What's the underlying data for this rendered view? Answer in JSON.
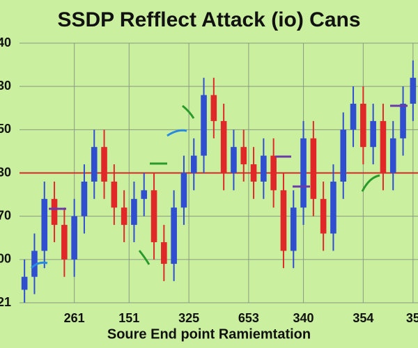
{
  "chart_data": {
    "type": "candlestick",
    "title": "SSDP Refflect Attack (io) Cans",
    "x_label": "Soure End point Ramiemtation",
    "xlim": [
      0,
      40
    ],
    "xticks": [
      {
        "value": 5.5,
        "label": "261"
      },
      {
        "value": 11,
        "label": "151"
      },
      {
        "value": 17,
        "label": "325"
      },
      {
        "value": 23,
        "label": "653"
      },
      {
        "value": 28.5,
        "label": "340"
      },
      {
        "value": 34.5,
        "label": "354"
      },
      {
        "value": 39.5,
        "label": "35"
      }
    ],
    "ylim": [
      0,
      6
    ],
    "yticks": [
      {
        "value": 0,
        "label": "21"
      },
      {
        "value": 1,
        "label": "00"
      },
      {
        "value": 2,
        "label": "70"
      },
      {
        "value": 3,
        "label": "30"
      },
      {
        "value": 4,
        "label": "50"
      },
      {
        "value": 5,
        "label": "30"
      },
      {
        "value": 6,
        "label": "40"
      }
    ],
    "grid": true,
    "reference_line": {
      "value": 3,
      "color": "#d42a2a"
    },
    "up_color": "#2f4fd0",
    "down_color": "#e02828",
    "x": [
      0,
      1,
      2,
      3,
      4,
      5,
      6,
      7,
      8,
      9,
      10,
      11,
      12,
      13,
      14,
      15,
      16,
      17,
      18,
      19,
      20,
      21,
      22,
      23,
      24,
      25,
      26,
      27,
      28,
      29,
      30,
      31,
      32,
      33,
      34,
      35,
      36,
      37,
      38,
      39
    ],
    "open": [
      0.3,
      0.6,
      1.2,
      2.4,
      1.8,
      1.0,
      2.0,
      2.8,
      3.6,
      2.8,
      2.2,
      1.8,
      2.4,
      2.6,
      1.4,
      0.9,
      2.2,
      3.0,
      3.4,
      4.8,
      4.2,
      3.0,
      3.6,
      3.2,
      2.8,
      3.4,
      2.6,
      1.2,
      2.2,
      3.8,
      2.4,
      1.6,
      2.8,
      4.0,
      4.6,
      3.6,
      4.2,
      3.0,
      3.8,
      4.6
    ],
    "high": [
      1.0,
      1.6,
      2.8,
      2.8,
      2.2,
      2.4,
      3.2,
      4.0,
      4.0,
      3.2,
      2.6,
      2.8,
      3.0,
      3.0,
      1.8,
      2.6,
      3.4,
      3.8,
      5.2,
      5.2,
      4.6,
      4.0,
      4.0,
      3.6,
      3.8,
      3.8,
      3.0,
      2.6,
      4.2,
      4.2,
      2.8,
      3.2,
      4.4,
      5.0,
      5.0,
      4.6,
      4.6,
      4.2,
      5.0,
      5.6
    ],
    "low": [
      0.0,
      0.2,
      0.8,
      1.4,
      0.6,
      0.6,
      1.6,
      2.4,
      2.4,
      1.8,
      1.4,
      1.4,
      2.0,
      1.0,
      0.5,
      0.5,
      1.8,
      2.6,
      3.0,
      3.8,
      2.6,
      2.6,
      2.8,
      2.4,
      2.4,
      2.2,
      0.8,
      0.8,
      1.8,
      2.0,
      1.2,
      1.2,
      2.4,
      3.6,
      3.2,
      3.2,
      2.6,
      2.6,
      3.4,
      4.2
    ],
    "close": [
      0.6,
      1.2,
      2.4,
      1.8,
      1.0,
      2.0,
      2.8,
      3.6,
      2.8,
      2.2,
      1.8,
      2.4,
      2.6,
      1.4,
      0.9,
      2.2,
      3.0,
      3.4,
      4.8,
      4.2,
      3.0,
      3.6,
      3.2,
      2.8,
      3.4,
      2.6,
      1.2,
      2.2,
      3.8,
      2.4,
      1.6,
      2.8,
      4.0,
      4.6,
      3.6,
      4.2,
      3.0,
      3.8,
      4.6,
      5.2
    ]
  }
}
